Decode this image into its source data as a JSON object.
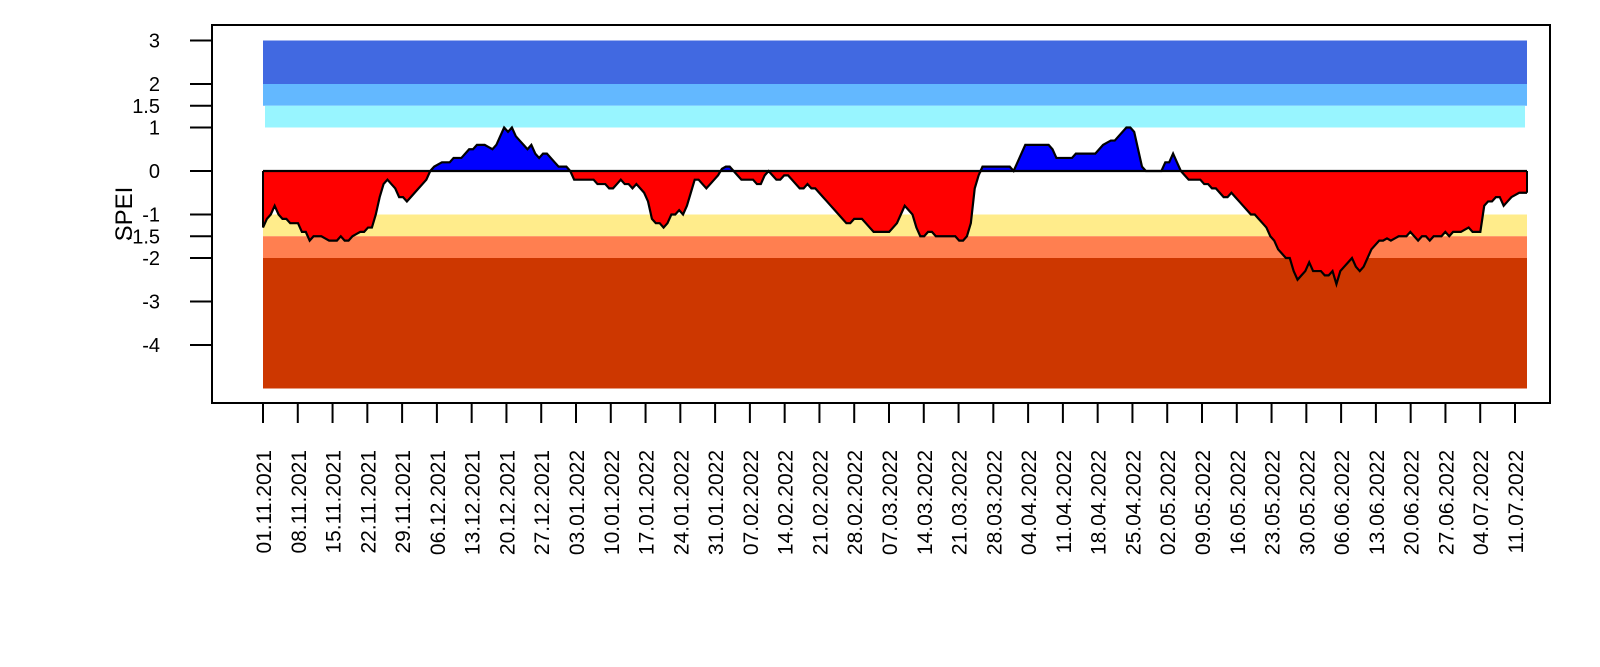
{
  "chart_data": {
    "type": "area",
    "ylabel": "SPEI",
    "ylim": [
      -5,
      3
    ],
    "y_ticks": [
      3,
      2,
      1.5,
      1,
      0,
      -1,
      -1.5,
      -2,
      -3,
      -4
    ],
    "y_tick_labels": [
      "3",
      "2",
      "1.5",
      "1",
      "0",
      "-1",
      "-1.5",
      "-2",
      "-3",
      "-4"
    ],
    "x_tick_labels": [
      "01.11.2021",
      "08.11.2021",
      "15.11.2021",
      "22.11.2021",
      "29.11.2021",
      "06.12.2021",
      "13.12.2021",
      "20.12.2021",
      "27.12.2021",
      "03.01.2022",
      "10.01.2022",
      "17.01.2022",
      "24.01.2022",
      "31.01.2022",
      "07.02.2022",
      "14.02.2022",
      "21.02.2022",
      "28.02.2022",
      "07.03.2022",
      "14.03.2022",
      "21.03.2022",
      "28.03.2022",
      "04.04.2022",
      "11.04.2022",
      "18.04.2022",
      "25.04.2022",
      "02.05.2022",
      "09.05.2022",
      "16.05.2022",
      "23.05.2022",
      "30.05.2022",
      "06.06.2022",
      "13.06.2022",
      "20.06.2022",
      "27.06.2022",
      "04.07.2022",
      "11.07.2022"
    ],
    "bands": [
      {
        "from": 2,
        "to": 3,
        "color": "#4169E1"
      },
      {
        "from": 1.5,
        "to": 2,
        "color": "#63B8FF"
      },
      {
        "from": 1,
        "to": 1.5,
        "color": "#98F5FF"
      },
      {
        "from": -1.5,
        "to": -1,
        "color": "#FFEC8B"
      },
      {
        "from": -2,
        "to": -1.5,
        "color": "#FF7F50"
      },
      {
        "from": -5,
        "to": -2,
        "color": "#CD3700"
      }
    ],
    "positive_color": "#0000FF",
    "negative_color": "#FF0000",
    "series": [
      {
        "values": [
          -1.3,
          -1.1,
          -1.0,
          -0.8,
          -1.0,
          -1.1,
          -1.1,
          -1.2,
          -1.2,
          -1.2,
          -1.4,
          -1.4,
          -1.6,
          -1.5,
          -1.5,
          -1.5,
          -1.55,
          -1.6,
          -1.6,
          -1.6,
          -1.5,
          -1.6,
          -1.6,
          -1.5,
          -1.45,
          -1.4,
          -1.4,
          -1.3,
          -1.3,
          -1.0,
          -0.6,
          -0.3,
          -0.2,
          -0.3,
          -0.4,
          -0.6,
          -0.6,
          -0.7,
          -0.6,
          -0.5,
          -0.4,
          -0.3,
          -0.2,
          0.0,
          0.1,
          0.15,
          0.2,
          0.2,
          0.2,
          0.3,
          0.3,
          0.3,
          0.4,
          0.5,
          0.5,
          0.6,
          0.6,
          0.6,
          0.55,
          0.5,
          0.6,
          0.8,
          1.0,
          0.9,
          1.0,
          0.8,
          0.7,
          0.6,
          0.5,
          0.6,
          0.4,
          0.3,
          0.4,
          0.4,
          0.3,
          0.2,
          0.1,
          0.1,
          0.1,
          0.0,
          -0.2,
          -0.2,
          -0.2,
          -0.2,
          -0.2,
          -0.2,
          -0.3,
          -0.3,
          -0.3,
          -0.4,
          -0.4,
          -0.3,
          -0.2,
          -0.3,
          -0.3,
          -0.4,
          -0.3,
          -0.4,
          -0.5,
          -0.7,
          -1.1,
          -1.2,
          -1.2,
          -1.3,
          -1.2,
          -1.0,
          -1.0,
          -0.9,
          -1.0,
          -0.8,
          -0.5,
          -0.2,
          -0.2,
          -0.3,
          -0.4,
          -0.3,
          -0.2,
          -0.1,
          0.05,
          0.1,
          0.1,
          0.0,
          -0.1,
          -0.2,
          -0.2,
          -0.2,
          -0.2,
          -0.3,
          -0.3,
          -0.1,
          0.0,
          -0.1,
          -0.2,
          -0.2,
          -0.1,
          -0.1,
          -0.2,
          -0.3,
          -0.4,
          -0.4,
          -0.3,
          -0.4,
          -0.4,
          -0.5,
          -0.6,
          -0.7,
          -0.8,
          -0.9,
          -1.0,
          -1.1,
          -1.2,
          -1.2,
          -1.1,
          -1.1,
          -1.1,
          -1.2,
          -1.3,
          -1.4,
          -1.4,
          -1.4,
          -1.4,
          -1.4,
          -1.3,
          -1.2,
          -1.0,
          -0.8,
          -0.9,
          -1.0,
          -1.3,
          -1.5,
          -1.5,
          -1.4,
          -1.4,
          -1.5,
          -1.5,
          -1.5,
          -1.5,
          -1.5,
          -1.5,
          -1.6,
          -1.6,
          -1.5,
          -1.2,
          -0.4,
          -0.1,
          0.1,
          0.1,
          0.1,
          0.1,
          0.1,
          0.1,
          0.1,
          0.1,
          0.0,
          0.2,
          0.4,
          0.6,
          0.6,
          0.6,
          0.6,
          0.6,
          0.6,
          0.6,
          0.5,
          0.3,
          0.3,
          0.3,
          0.3,
          0.3,
          0.4,
          0.4,
          0.4,
          0.4,
          0.4,
          0.4,
          0.5,
          0.6,
          0.65,
          0.7,
          0.7,
          0.8,
          0.9,
          1.0,
          1.0,
          0.9,
          0.5,
          0.1,
          0.0,
          0.0,
          0.0,
          0.0,
          0.0,
          0.2,
          0.2,
          0.4,
          0.2,
          0.0,
          -0.1,
          -0.2,
          -0.2,
          -0.2,
          -0.2,
          -0.3,
          -0.3,
          -0.4,
          -0.4,
          -0.5,
          -0.6,
          -0.6,
          -0.5,
          -0.6,
          -0.7,
          -0.8,
          -0.9,
          -1.0,
          -1.0,
          -1.1,
          -1.2,
          -1.3,
          -1.5,
          -1.6,
          -1.8,
          -1.9,
          -2.0,
          -2.0,
          -2.3,
          -2.5,
          -2.4,
          -2.3,
          -2.1,
          -2.3,
          -2.3,
          -2.3,
          -2.4,
          -2.4,
          -2.3,
          -2.6,
          -2.3,
          -2.2,
          -2.1,
          -2.0,
          -2.2,
          -2.3,
          -2.2,
          -2.0,
          -1.8,
          -1.7,
          -1.6,
          -1.6,
          -1.55,
          -1.6,
          -1.55,
          -1.5,
          -1.5,
          -1.5,
          -1.4,
          -1.5,
          -1.6,
          -1.5,
          -1.5,
          -1.6,
          -1.5,
          -1.5,
          -1.5,
          -1.4,
          -1.5,
          -1.4,
          -1.4,
          -1.4,
          -1.35,
          -1.3,
          -1.4,
          -1.4,
          -1.4,
          -0.8,
          -0.7,
          -0.7,
          -0.6,
          -0.6,
          -0.8,
          -0.7,
          -0.6,
          -0.55,
          -0.5,
          -0.5,
          -0.5
        ]
      }
    ]
  }
}
